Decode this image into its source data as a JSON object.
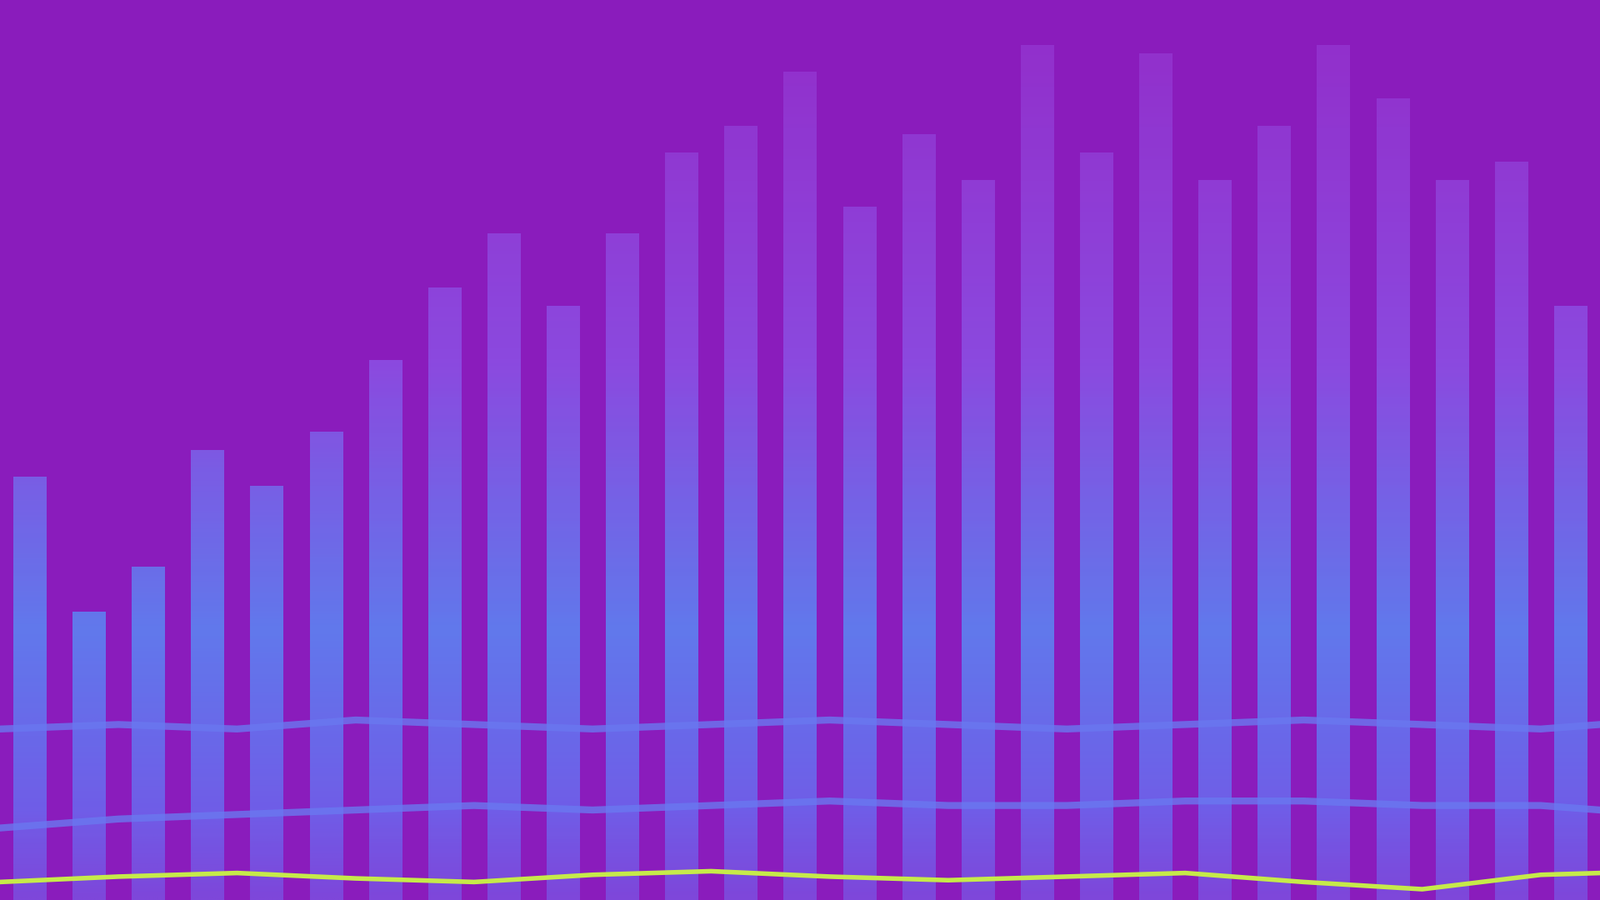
{
  "chart_data": {
    "type": "bar",
    "categories": [
      null,
      null,
      null,
      null,
      null,
      null,
      null,
      null,
      null,
      null,
      null,
      null,
      null,
      null,
      null,
      null,
      null,
      null,
      null,
      null,
      null,
      null,
      null,
      null,
      null,
      null,
      null
    ],
    "values": [
      47,
      32,
      37,
      50,
      46,
      52,
      60,
      68,
      74,
      66,
      74,
      83,
      86,
      92,
      77,
      85,
      80,
      95,
      83,
      94,
      80,
      86,
      95,
      89,
      80,
      82,
      66
    ],
    "color": "#9a45e0",
    "xlim": [
      -0.5,
      26.5
    ],
    "ylim": [
      0,
      100
    ],
    "tick_labels": false,
    "series": [
      {
        "type": "line",
        "color": "#6a78f0",
        "x": [
          -0.5,
          1.5,
          3.5,
          5.5,
          7.5,
          9.5,
          11.5,
          13.5,
          15.5,
          17.5,
          19.5,
          21.5,
          23.5,
          25.5,
          26.5
        ],
        "values": [
          19,
          19.5,
          19,
          20,
          19.5,
          19,
          19.5,
          20,
          19.5,
          19,
          19.5,
          20,
          19.5,
          19,
          19.5
        ]
      },
      {
        "type": "line",
        "color": "#6a78f0",
        "x": [
          -0.5,
          1.5,
          3.5,
          5.5,
          7.5,
          9.5,
          11.5,
          13.5,
          15.5,
          17.5,
          19.5,
          21.5,
          23.5,
          25.5,
          26.5
        ],
        "values": [
          8,
          9,
          9.5,
          10,
          10.5,
          10,
          10.5,
          11,
          10.5,
          10.5,
          11,
          11,
          10.5,
          10.5,
          10
        ]
      },
      {
        "type": "line",
        "color": "#c6ea4a",
        "x": [
          -0.5,
          1.5,
          3.5,
          5.5,
          7.5,
          9.5,
          11.5,
          13.5,
          15.5,
          17.5,
          19.5,
          21.5,
          23.5,
          25.5,
          26.5
        ],
        "values": [
          2.0,
          2.6,
          3.0,
          2.4,
          2.0,
          2.8,
          3.2,
          2.6,
          2.2,
          2.6,
          3.0,
          2.0,
          1.2,
          2.8,
          3.0
        ]
      }
    ]
  }
}
